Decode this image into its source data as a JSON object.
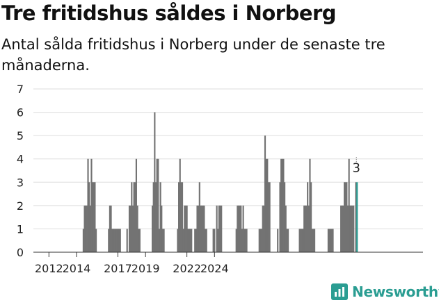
{
  "title": "Tre fritidshus såldes i Norberg",
  "subtitle": "Antal sålda fritidshus i Norberg under de senaste tre månaderna.",
  "brand": {
    "name": "Newsworthy",
    "icon": "bar-chart-logo-icon",
    "color": "#2a9d92"
  },
  "chart_data": {
    "type": "bar",
    "title": "",
    "xlabel": "",
    "ylabel": "",
    "ylim": [
      0,
      7
    ],
    "yticks": [
      0,
      1,
      2,
      3,
      4,
      5,
      6,
      7
    ],
    "xticks": [
      "2012",
      "2014",
      "2017",
      "2019",
      "2022",
      "2024"
    ],
    "grid": true,
    "x_start": "2011-01",
    "x_end": "2024-10",
    "bar_color": "#737373",
    "highlight_color": "#2a9d92",
    "highlight_label": "3",
    "values": [
      0,
      0,
      0,
      0,
      0,
      0,
      0,
      0,
      0,
      0,
      0,
      0,
      0,
      0,
      0,
      0,
      0,
      0,
      0,
      0,
      0,
      0,
      0,
      0,
      0,
      0,
      0,
      0,
      0,
      0,
      0,
      0,
      0,
      0,
      0,
      0,
      0,
      0,
      0,
      0,
      0,
      0,
      1,
      2,
      2,
      2,
      4,
      3,
      2,
      4,
      3,
      3,
      3,
      1,
      0,
      0,
      0,
      0,
      0,
      0,
      0,
      0,
      0,
      0,
      1,
      2,
      2,
      1,
      1,
      1,
      1,
      1,
      1,
      1,
      1,
      0,
      0,
      0,
      0,
      0,
      1,
      0,
      2,
      2,
      3,
      2,
      3,
      3,
      4,
      2,
      1,
      1,
      0,
      0,
      0,
      0,
      0,
      0,
      0,
      0,
      0,
      0,
      2,
      3,
      6,
      3,
      4,
      4,
      1,
      3,
      2,
      1,
      1,
      0,
      0,
      0,
      0,
      0,
      0,
      0,
      0,
      0,
      0,
      0,
      1,
      3,
      4,
      3,
      3,
      1,
      2,
      2,
      2,
      1,
      1,
      1,
      1,
      0,
      0,
      1,
      1,
      2,
      2,
      3,
      2,
      2,
      2,
      2,
      1,
      1,
      0,
      0,
      0,
      0,
      0,
      1,
      1,
      0,
      2,
      1,
      2,
      2,
      2,
      0,
      0,
      0,
      0,
      0,
      0,
      0,
      0,
      0,
      0,
      0,
      0,
      1,
      2,
      2,
      2,
      2,
      1,
      2,
      1,
      1,
      1,
      0,
      0,
      0,
      0,
      0,
      0,
      0,
      0,
      0,
      0,
      1,
      1,
      1,
      2,
      2,
      5,
      4,
      4,
      3,
      3,
      0,
      0,
      0,
      0,
      0,
      0,
      1,
      0,
      3,
      4,
      4,
      4,
      3,
      2,
      1,
      1,
      0,
      0,
      0,
      0,
      0,
      0,
      0,
      0,
      0,
      1,
      1,
      1,
      1,
      2,
      2,
      2,
      3,
      2,
      4,
      3,
      1,
      1,
      1,
      0,
      0,
      0,
      0,
      0,
      0,
      0,
      0,
      0,
      0,
      0,
      1,
      1,
      1,
      1,
      1,
      0,
      0,
      0,
      0,
      0,
      0,
      2,
      2,
      2,
      3,
      3,
      3,
      2,
      4,
      2,
      2,
      2,
      2,
      0,
      3,
      3
    ]
  }
}
